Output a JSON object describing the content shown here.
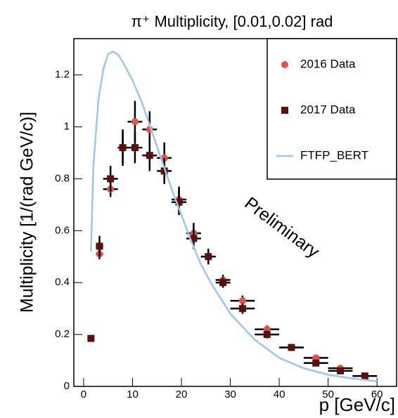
{
  "chart_data": {
    "type": "scatter",
    "title": "π⁺ Multiplicity, [0.01,0.02] rad",
    "x_label": "p [GeV/c]",
    "y_label": "Multiplicity [1/(rad GeV/c)]",
    "annotation": "Preliminary",
    "xlim": [
      -2,
      64
    ],
    "ylim": [
      0,
      1.34
    ],
    "xticks": [
      0,
      10,
      20,
      30,
      40,
      50,
      60
    ],
    "yticks": [
      0,
      0.2,
      0.4,
      0.6,
      0.8,
      1,
      1.2
    ],
    "legend": "top-right",
    "series": [
      {
        "name": "2016 Data",
        "color": "#e8504a",
        "marker": "circle",
        "x": [
          3.25,
          5.5,
          8,
          10.5,
          13.5,
          16.5,
          19.5,
          22.5,
          25.5,
          28.5,
          32.5,
          37.5,
          42.5,
          47.5,
          52.5,
          57.5
        ],
        "values": [
          0.51,
          0.76,
          0.92,
          1.02,
          0.99,
          0.88,
          0.72,
          0.59,
          0.5,
          0.41,
          0.33,
          0.22,
          0.15,
          0.11,
          0.07,
          0.04
        ],
        "yerr": [
          0.02,
          0.03,
          0.06,
          0.08,
          0.07,
          0.06,
          0.05,
          0.04,
          0.03,
          0.02,
          0.02,
          0.015,
          0.01,
          0.01,
          0.01,
          0.005
        ],
        "xerr": [
          0.75,
          1.5,
          1,
          1.5,
          1.5,
          1.5,
          1.5,
          1.5,
          1.5,
          1.5,
          2.5,
          2.5,
          2.5,
          2.5,
          2.5,
          2.5
        ]
      },
      {
        "name": "2017 Data",
        "color": "#5a1010",
        "marker": "square",
        "x": [
          1.5,
          3.25,
          5.5,
          8,
          10.5,
          13.5,
          16.5,
          19.5,
          22.5,
          25.5,
          28.5,
          32.5,
          37.5,
          42.5,
          47.5,
          52.5,
          57.5
        ],
        "values": [
          0.185,
          0.54,
          0.8,
          0.92,
          0.92,
          0.89,
          0.83,
          0.71,
          0.57,
          0.5,
          0.4,
          0.3,
          0.2,
          0.15,
          0.09,
          0.06,
          0.04
        ],
        "yerr": [
          0.01,
          0.04,
          0.05,
          0.07,
          0.06,
          0.06,
          0.05,
          0.05,
          0.04,
          0.03,
          0.02,
          0.02,
          0.015,
          0.01,
          0.01,
          0.01,
          0.005
        ],
        "xerr": [
          0.5,
          0.75,
          1.5,
          1,
          1.5,
          1.5,
          1.5,
          1.5,
          1.5,
          1.5,
          1.5,
          2.5,
          2.5,
          2.5,
          2.5,
          2.5,
          2.5
        ]
      },
      {
        "name": "FTFP_BERT",
        "color": "#9ec5ea",
        "marker": "line",
        "x": [
          1.5,
          2,
          3,
          4,
          5,
          6,
          7,
          8,
          10,
          12,
          14,
          16,
          18,
          20,
          22,
          24,
          26,
          28,
          30,
          32,
          35,
          40,
          45,
          50,
          55,
          60
        ],
        "values": [
          0.52,
          0.85,
          1.1,
          1.22,
          1.28,
          1.29,
          1.28,
          1.25,
          1.18,
          1.09,
          0.98,
          0.87,
          0.76,
          0.66,
          0.56,
          0.47,
          0.4,
          0.34,
          0.28,
          0.24,
          0.18,
          0.11,
          0.07,
          0.045,
          0.03,
          0.02
        ]
      }
    ]
  }
}
